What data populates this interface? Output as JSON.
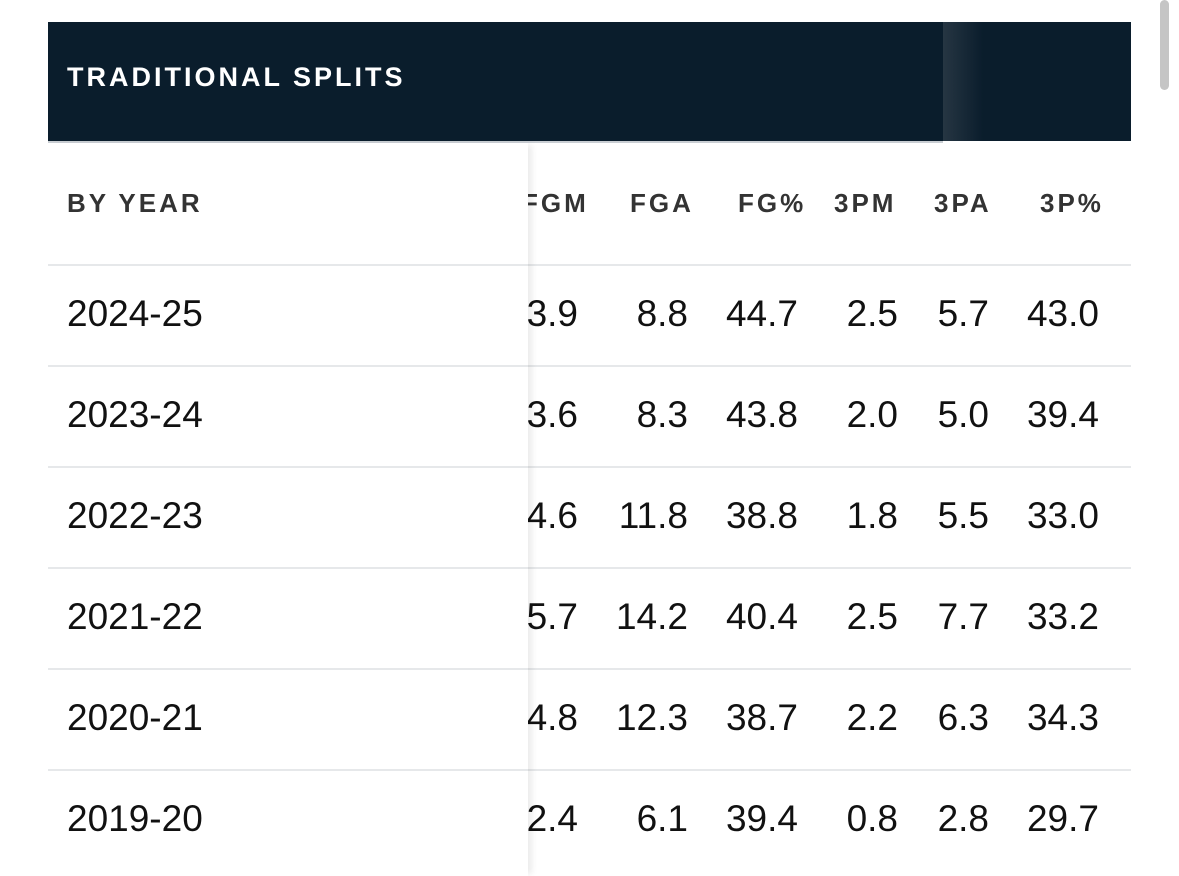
{
  "header": {
    "title": "TRADITIONAL SPLITS"
  },
  "table": {
    "row_group_label": "BY YEAR",
    "columns": [
      "FGM",
      "FGA",
      "FG%",
      "3PM",
      "3PA",
      "3P%"
    ],
    "rows": [
      {
        "year": "2024-25",
        "values": [
          "3.9",
          "8.8",
          "44.7",
          "2.5",
          "5.7",
          "43.0"
        ]
      },
      {
        "year": "2023-24",
        "values": [
          "3.6",
          "8.3",
          "43.8",
          "2.0",
          "5.0",
          "39.4"
        ]
      },
      {
        "year": "2022-23",
        "values": [
          "4.6",
          "11.8",
          "38.8",
          "1.8",
          "5.5",
          "33.0"
        ]
      },
      {
        "year": "2021-22",
        "values": [
          "5.7",
          "14.2",
          "40.4",
          "2.5",
          "7.7",
          "33.2"
        ]
      },
      {
        "year": "2020-21",
        "values": [
          "4.8",
          "12.3",
          "38.7",
          "2.2",
          "6.3",
          "34.3"
        ]
      },
      {
        "year": "2019-20",
        "values": [
          "2.4",
          "6.1",
          "39.4",
          "0.8",
          "2.8",
          "29.7"
        ]
      }
    ]
  },
  "colors": {
    "header_bg": "#0a1d2c",
    "header_text": "#ffffff",
    "row_divider": "#e6e8ea"
  }
}
